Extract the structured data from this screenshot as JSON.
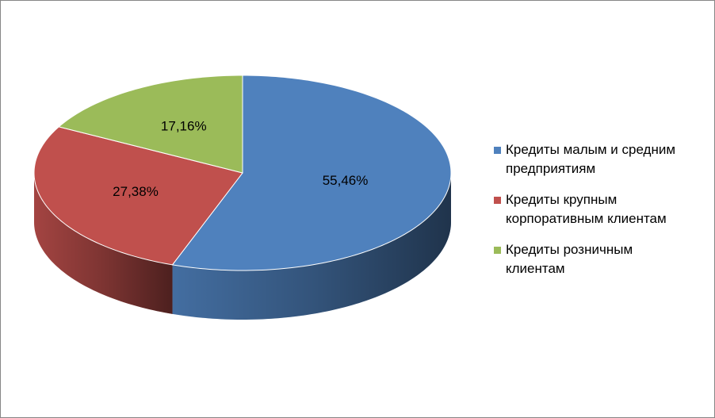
{
  "chart_data": {
    "type": "pie",
    "categories": [
      "Кредиты малым и средним предприятиям",
      "Кредиты крупным корпоративным клиентам",
      "Кредиты розничным клиентам"
    ],
    "values": [
      55.46,
      27.38,
      17.16
    ],
    "value_labels": [
      "55,46%",
      "27,38%",
      "17,16%"
    ],
    "colors": [
      "#4f81bd",
      "#c0504d",
      "#9bbb59"
    ],
    "legend": "right"
  }
}
